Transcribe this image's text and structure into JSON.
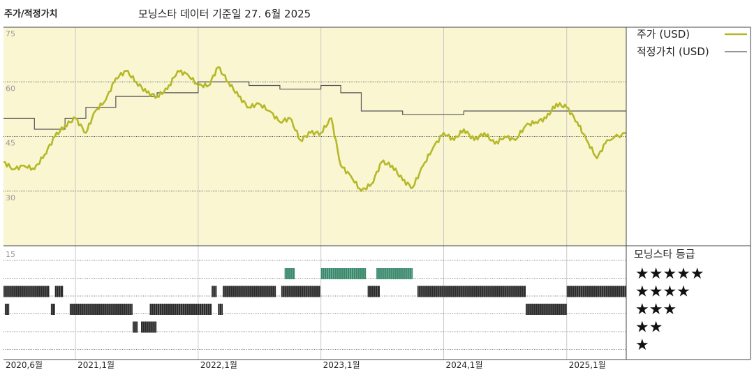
{
  "header": {
    "title": "주가/적정가치",
    "subtitle": "모닝스타 데이터 기준일 27. 6월 2025"
  },
  "legend": {
    "price_label": "주가 (USD)",
    "fair_value_label": "적정가치 (USD)",
    "rating_title": "모닝스타 등급",
    "stars": [
      "★★★★★",
      "★★★★",
      "★★★",
      "★★",
      "★"
    ]
  },
  "colors": {
    "price": "#b5b827",
    "fair_value": "#555555",
    "plot_bg": "#faf6d2",
    "rating_bar": "#2b2b2b",
    "rating_bar_5": "#3c8a6e"
  },
  "chart_data": {
    "type": "line",
    "x_range": [
      "2020-06-01",
      "2025-06-27"
    ],
    "x_ticks": [
      {
        "date": "2020-06-01",
        "label": "2020,6월"
      },
      {
        "date": "2021-01-01",
        "label": "2021,1월"
      },
      {
        "date": "2022-01-01",
        "label": "2022,1월"
      },
      {
        "date": "2023-01-01",
        "label": "2023,1월"
      },
      {
        "date": "2024-01-01",
        "label": "2024,1월"
      },
      {
        "date": "2025-01-01",
        "label": "2025,1월"
      }
    ],
    "y_range": [
      15,
      75
    ],
    "y_ticks": [
      75,
      60,
      45,
      30
    ],
    "series": [
      {
        "name": "주가 (USD)",
        "style": "line",
        "points": [
          [
            "2020-06-01",
            38
          ],
          [
            "2020-07-01",
            36
          ],
          [
            "2020-08-01",
            37
          ],
          [
            "2020-09-01",
            36
          ],
          [
            "2020-10-01",
            40
          ],
          [
            "2020-11-01",
            45
          ],
          [
            "2020-12-01",
            48
          ],
          [
            "2021-01-01",
            50
          ],
          [
            "2021-02-01",
            46
          ],
          [
            "2021-03-01",
            52
          ],
          [
            "2021-04-01",
            55
          ],
          [
            "2021-05-01",
            61
          ],
          [
            "2021-06-01",
            63
          ],
          [
            "2021-07-01",
            60
          ],
          [
            "2021-08-01",
            57
          ],
          [
            "2021-09-01",
            56
          ],
          [
            "2021-10-01",
            58
          ],
          [
            "2021-11-01",
            63
          ],
          [
            "2021-12-01",
            62
          ],
          [
            "2022-01-01",
            59
          ],
          [
            "2022-02-01",
            59
          ],
          [
            "2022-03-01",
            64
          ],
          [
            "2022-04-01",
            60
          ],
          [
            "2022-05-01",
            56
          ],
          [
            "2022-06-01",
            53
          ],
          [
            "2022-07-01",
            54
          ],
          [
            "2022-08-01",
            52
          ],
          [
            "2022-09-01",
            49
          ],
          [
            "2022-10-01",
            50
          ],
          [
            "2022-11-01",
            44
          ],
          [
            "2022-12-01",
            46
          ],
          [
            "2023-01-01",
            46
          ],
          [
            "2023-02-01",
            50
          ],
          [
            "2023-03-01",
            37
          ],
          [
            "2023-04-01",
            34
          ],
          [
            "2023-05-01",
            30
          ],
          [
            "2023-06-01",
            32
          ],
          [
            "2023-07-01",
            38
          ],
          [
            "2023-08-01",
            37
          ],
          [
            "2023-09-01",
            33
          ],
          [
            "2023-10-01",
            31
          ],
          [
            "2023-11-01",
            37
          ],
          [
            "2023-12-01",
            42
          ],
          [
            "2024-01-01",
            46
          ],
          [
            "2024-02-01",
            44
          ],
          [
            "2024-03-01",
            47
          ],
          [
            "2024-04-01",
            44
          ],
          [
            "2024-05-01",
            46
          ],
          [
            "2024-06-01",
            43
          ],
          [
            "2024-07-01",
            45
          ],
          [
            "2024-08-01",
            44
          ],
          [
            "2024-09-01",
            48
          ],
          [
            "2024-10-01",
            49
          ],
          [
            "2024-11-01",
            50
          ],
          [
            "2024-12-01",
            54
          ],
          [
            "2025-01-01",
            53
          ],
          [
            "2025-02-01",
            49
          ],
          [
            "2025-03-01",
            44
          ],
          [
            "2025-04-01",
            39
          ],
          [
            "2025-05-01",
            44
          ],
          [
            "2025-06-27",
            46
          ]
        ]
      },
      {
        "name": "적정가치 (USD)",
        "style": "step",
        "points": [
          [
            "2020-06-01",
            50
          ],
          [
            "2020-09-01",
            47
          ],
          [
            "2020-12-01",
            50
          ],
          [
            "2021-02-01",
            53
          ],
          [
            "2021-05-01",
            56
          ],
          [
            "2021-09-01",
            57
          ],
          [
            "2022-01-01",
            60
          ],
          [
            "2022-06-01",
            59
          ],
          [
            "2022-09-01",
            58
          ],
          [
            "2023-01-01",
            59
          ],
          [
            "2023-03-01",
            57
          ],
          [
            "2023-05-01",
            52
          ],
          [
            "2023-09-01",
            51
          ],
          [
            "2024-03-01",
            52
          ],
          [
            "2025-06-27",
            52
          ]
        ]
      }
    ],
    "rating_panel": {
      "y_label": "15",
      "rows": [
        {
          "stars": 5,
          "periods": [
            [
              "2022-09-15",
              "2022-10-15"
            ],
            [
              "2023-01-01",
              "2023-05-15"
            ],
            [
              "2023-06-15",
              "2023-10-01"
            ]
          ]
        },
        {
          "stars": 4,
          "periods": [
            [
              "2020-06-01",
              "2020-10-15"
            ],
            [
              "2020-11-01",
              "2020-11-25"
            ],
            [
              "2022-02-10",
              "2022-02-25"
            ],
            [
              "2022-03-15",
              "2022-08-20"
            ],
            [
              "2022-09-05",
              "2022-12-30"
            ],
            [
              "2023-05-20",
              "2023-06-25"
            ],
            [
              "2023-10-15",
              "2024-09-01"
            ],
            [
              "2025-01-01",
              "2025-06-27"
            ]
          ]
        },
        {
          "stars": 3,
          "periods": [
            [
              "2020-06-05",
              "2020-06-18"
            ],
            [
              "2020-10-20",
              "2020-11-01"
            ],
            [
              "2020-12-15",
              "2021-06-20"
            ],
            [
              "2021-08-10",
              "2022-02-10"
            ],
            [
              "2022-03-01",
              "2022-03-15"
            ],
            [
              "2024-09-01",
              "2025-01-01"
            ]
          ]
        },
        {
          "stars": 2,
          "periods": [
            [
              "2021-06-20",
              "2021-07-05"
            ],
            [
              "2021-07-15",
              "2021-08-30"
            ]
          ]
        }
      ]
    }
  }
}
